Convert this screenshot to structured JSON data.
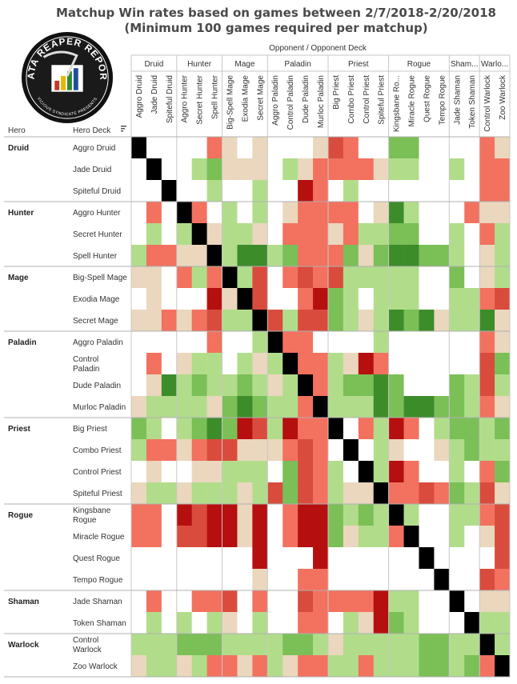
{
  "title_line1": "Matchup Win rates based on games between 2/7/2018-2/20/2018",
  "title_line2": "(Minimum 100 games required per matchup)",
  "logo": {
    "text_top": "DATA REAPER REPORT",
    "text_bottom": "VICIOUS SYNDICATE PRESENTS"
  },
  "chart_data": {
    "type": "heatmap",
    "column_header": "Opponent  /  Opponent Deck",
    "row_headers": [
      "Hero",
      "Hero Deck"
    ],
    "heroes": [
      {
        "name": "Druid",
        "decks": [
          "Aggro Druid",
          "Jade Druid",
          "Spiteful Druid"
        ]
      },
      {
        "name": "Hunter",
        "decks": [
          "Aggro Hunter",
          "Secret Hunter",
          "Spell Hunter"
        ]
      },
      {
        "name": "Mage",
        "decks": [
          "Big-Spell Mage",
          "Exodia Mage",
          "Secret Mage"
        ]
      },
      {
        "name": "Paladin",
        "decks": [
          "Aggro Paladin",
          "Control Paladin",
          "Dude Paladin",
          "Murloc Paladin"
        ]
      },
      {
        "name": "Priest",
        "decks": [
          "Big Priest",
          "Combo Priest",
          "Control Priest",
          "Spiteful Priest"
        ]
      },
      {
        "name": "Rogue",
        "decks": [
          "Kingsbane Rogue",
          "Miracle Rogue",
          "Quest Rogue",
          "Tempo Rogue"
        ]
      },
      {
        "name": "Shaman",
        "decks": [
          "Jade Shaman",
          "Token Shaman"
        ]
      },
      {
        "name": "Warlock",
        "decks": [
          "Control Warlock",
          "Zoo Warlock"
        ]
      }
    ],
    "column_hero_labels": [
      "Druid",
      "Hunter",
      "Mage",
      "Paladin",
      "Priest",
      "Rogue",
      "Sham...",
      "Warlo..."
    ],
    "column_deck_labels": [
      "Aggro Druid",
      "Jade Druid",
      "Spiteful Druid",
      "Aggro Hunter",
      "Secret Hunter",
      "Spell Hunter",
      "Big-Spell Mage",
      "Exodia Mage",
      "Secret Mage",
      "Aggro Paladin",
      "Control Paladin",
      "Dude Paladin",
      "Murloc Paladin",
      "Big Priest",
      "Combo Priest",
      "Control Priest",
      "Spiteful Priest",
      "Kingsbane Ro...",
      "Miracle Rogue",
      "Quest Rogue",
      "Tempo Rogue",
      "Jade Shaman",
      "Token Shaman",
      "Control Warlock",
      "Zoo Warlock"
    ],
    "row_deck_labels": [
      [
        "Aggro Druid"
      ],
      [
        "Jade Druid"
      ],
      [
        "Spiteful Druid"
      ],
      [
        "Aggro Hunter"
      ],
      [
        "Secret Hunter"
      ],
      [
        "Spell Hunter"
      ],
      [
        "Big-Spell Mage"
      ],
      [
        "Exodia Mage"
      ],
      [
        "Secret Mage"
      ],
      [
        "Aggro Paladin"
      ],
      [
        "Control",
        "Paladin"
      ],
      [
        "Dude Paladin"
      ],
      [
        "Murloc Paladin"
      ],
      [
        "Big Priest"
      ],
      [
        "Combo Priest"
      ],
      [
        "Control Priest"
      ],
      [
        "Spiteful Priest"
      ],
      [
        "Kingsbane",
        "Rogue"
      ],
      [
        "Miracle Rogue"
      ],
      [
        "Quest Rogue"
      ],
      [
        "Tempo Rogue"
      ],
      [
        "Jade Shaman"
      ],
      [
        "Token Shaman"
      ],
      [
        "Control",
        "Warlock"
      ],
      [
        "Zoo Warlock"
      ]
    ],
    "value_encoding": {
      "0": "no data (fewer than 100 games)",
      "1": "strongly unfavored",
      "2": "unfavored",
      "3": "slightly unfavored",
      "4": "even",
      "5": "slightly favored",
      "6": "favored",
      "7": "strongly favored",
      "9": "mirror"
    },
    "colors": {
      "0": "#ffffff",
      "1": "#b50f0f",
      "2": "#d94c3d",
      "3": "#f2715f",
      "4": "#ead7bd",
      "5": "#b1dd8b",
      "6": "#7bbf57",
      "7": "#3d8c2a",
      "9": "#000000"
    },
    "matrix": [
      [
        9,
        0,
        0,
        0,
        0,
        3,
        4,
        0,
        4,
        0,
        0,
        0,
        4,
        2,
        3,
        0,
        0,
        6,
        6,
        0,
        0,
        0,
        0,
        3,
        4
      ],
      [
        0,
        9,
        0,
        0,
        5,
        6,
        4,
        4,
        4,
        0,
        5,
        4,
        3,
        3,
        3,
        3,
        4,
        5,
        5,
        0,
        0,
        5,
        0,
        3,
        3
      ],
      [
        0,
        0,
        9,
        0,
        0,
        5,
        0,
        0,
        5,
        0,
        0,
        1,
        3,
        0,
        5,
        0,
        0,
        0,
        0,
        0,
        0,
        0,
        0,
        3,
        3
      ],
      [
        0,
        3,
        0,
        9,
        3,
        0,
        5,
        0,
        5,
        0,
        4,
        3,
        3,
        3,
        3,
        0,
        4,
        7,
        5,
        0,
        0,
        0,
        3,
        4,
        4
      ],
      [
        0,
        5,
        0,
        5,
        9,
        4,
        5,
        5,
        4,
        0,
        3,
        3,
        3,
        4,
        3,
        5,
        5,
        6,
        6,
        0,
        0,
        5,
        0,
        3,
        5
      ],
      [
        5,
        3,
        3,
        4,
        4,
        9,
        5,
        7,
        7,
        5,
        6,
        3,
        3,
        3,
        6,
        4,
        6,
        7,
        7,
        6,
        6,
        5,
        0,
        4,
        5
      ],
      [
        4,
        4,
        0,
        3,
        5,
        3,
        9,
        5,
        2,
        0,
        3,
        2,
        3,
        2,
        5,
        5,
        5,
        5,
        5,
        0,
        0,
        6,
        0,
        4,
        5
      ],
      [
        0,
        4,
        0,
        0,
        0,
        1,
        4,
        9,
        2,
        0,
        0,
        3,
        1,
        6,
        5,
        0,
        5,
        5,
        5,
        0,
        0,
        5,
        5,
        3,
        2
      ],
      [
        4,
        4,
        3,
        4,
        3,
        2,
        5,
        5,
        9,
        2,
        5,
        2,
        2,
        6,
        5,
        4,
        5,
        7,
        6,
        7,
        4,
        5,
        5,
        7,
        4
      ],
      [
        0,
        0,
        0,
        0,
        0,
        3,
        0,
        0,
        5,
        9,
        3,
        3,
        0,
        0,
        0,
        0,
        5,
        0,
        0,
        0,
        0,
        0,
        0,
        3,
        4
      ],
      [
        0,
        3,
        0,
        4,
        5,
        5,
        0,
        5,
        4,
        5,
        9,
        3,
        3,
        5,
        4,
        1,
        3,
        0,
        0,
        0,
        0,
        0,
        0,
        2,
        6
      ],
      [
        0,
        4,
        7,
        5,
        6,
        5,
        5,
        6,
        5,
        4,
        5,
        9,
        3,
        5,
        6,
        6,
        7,
        6,
        0,
        0,
        0,
        6,
        5,
        2,
        5
      ],
      [
        4,
        5,
        5,
        5,
        5,
        4,
        6,
        7,
        6,
        5,
        5,
        3,
        9,
        5,
        5,
        5,
        7,
        6,
        7,
        7,
        6,
        6,
        5,
        3,
        4
      ],
      [
        6,
        5,
        0,
        5,
        6,
        7,
        6,
        1,
        2,
        5,
        1,
        3,
        3,
        9,
        0,
        3,
        5,
        1,
        3,
        0,
        5,
        6,
        6,
        5,
        6
      ],
      [
        5,
        3,
        3,
        4,
        3,
        2,
        2,
        4,
        4,
        4,
        3,
        2,
        3,
        0,
        9,
        0,
        5,
        4,
        0,
        0,
        4,
        5,
        6,
        5,
        5
      ],
      [
        0,
        4,
        0,
        0,
        4,
        4,
        5,
        5,
        5,
        0,
        6,
        2,
        3,
        5,
        0,
        9,
        5,
        1,
        3,
        0,
        0,
        5,
        0,
        3,
        6
      ],
      [
        4,
        5,
        5,
        4,
        5,
        5,
        5,
        4,
        5,
        2,
        6,
        2,
        3,
        5,
        4,
        4,
        9,
        3,
        3,
        2,
        3,
        6,
        5,
        2,
        4
      ],
      [
        3,
        3,
        0,
        1,
        2,
        1,
        1,
        4,
        1,
        0,
        3,
        1,
        1,
        6,
        5,
        6,
        5,
        9,
        5,
        0,
        0,
        5,
        5,
        3,
        2
      ],
      [
        3,
        3,
        0,
        2,
        2,
        1,
        1,
        4,
        1,
        0,
        3,
        1,
        1,
        6,
        4,
        5,
        5,
        3,
        9,
        0,
        0,
        5,
        0,
        4,
        2
      ],
      [
        0,
        0,
        0,
        0,
        0,
        0,
        0,
        0,
        1,
        0,
        0,
        0,
        1,
        0,
        0,
        0,
        0,
        0,
        0,
        9,
        0,
        0,
        0,
        0,
        2
      ],
      [
        0,
        0,
        0,
        0,
        0,
        0,
        0,
        0,
        4,
        0,
        0,
        3,
        3,
        0,
        0,
        0,
        0,
        0,
        0,
        0,
        9,
        0,
        0,
        2,
        3
      ],
      [
        0,
        3,
        0,
        0,
        3,
        3,
        2,
        0,
        3,
        0,
        0,
        2,
        3,
        3,
        3,
        3,
        1,
        5,
        5,
        0,
        0,
        9,
        0,
        4,
        4
      ],
      [
        0,
        5,
        0,
        5,
        0,
        5,
        4,
        0,
        5,
        0,
        0,
        3,
        3,
        0,
        5,
        4,
        1,
        6,
        5,
        0,
        0,
        0,
        9,
        5,
        5
      ],
      [
        5,
        5,
        5,
        6,
        6,
        6,
        5,
        5,
        5,
        5,
        6,
        6,
        5,
        4,
        5,
        5,
        5,
        5,
        5,
        6,
        6,
        5,
        5,
        9,
        5
      ],
      [
        4,
        5,
        5,
        4,
        5,
        3,
        3,
        4,
        3,
        5,
        4,
        3,
        3,
        5,
        5,
        3,
        5,
        5,
        5,
        6,
        6,
        5,
        6,
        3,
        9
      ]
    ]
  }
}
